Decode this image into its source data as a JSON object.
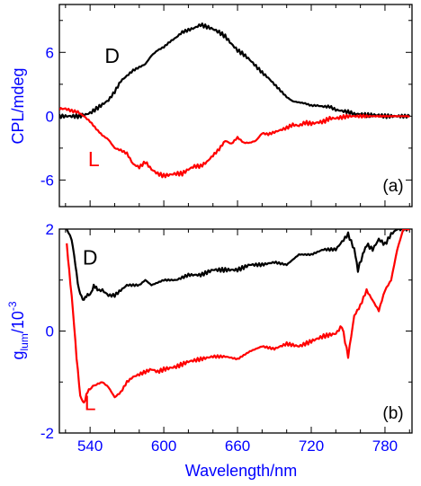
{
  "chart_data": [
    {
      "type": "line",
      "panel_label": "(a)",
      "ylabel": "CPL/mdeg",
      "xlim": [
        515,
        802
      ],
      "ylim": [
        -8.5,
        10.5
      ],
      "yticks": [
        {
          "value": 6,
          "label": "6"
        },
        {
          "value": 0,
          "label": "0"
        },
        {
          "value": -6,
          "label": "-6"
        }
      ],
      "series_colors": {
        "D": "#000000",
        "L": "#ff0000"
      },
      "series_labels": [
        {
          "name": "D",
          "label": "D",
          "x": 558,
          "y": 5.0
        },
        {
          "name": "L",
          "label": "L",
          "x": 543,
          "y": -4.7
        }
      ],
      "series": [
        {
          "name": "D",
          "x": [
            515,
            525,
            530,
            535,
            540,
            545,
            550,
            555,
            560,
            565,
            570,
            575,
            580,
            585,
            590,
            595,
            600,
            605,
            610,
            615,
            620,
            625,
            630,
            635,
            640,
            645,
            650,
            655,
            660,
            665,
            670,
            675,
            680,
            685,
            690,
            695,
            700,
            705,
            710,
            715,
            720,
            725,
            730,
            735,
            740,
            745,
            750,
            755,
            760,
            765,
            770,
            775,
            780,
            785,
            790,
            795,
            800
          ],
          "y": [
            0,
            0,
            0,
            0.1,
            0.3,
            0.7,
            1.1,
            1.5,
            2.3,
            3.3,
            3.8,
            4.3,
            4.6,
            4.9,
            5.7,
            6.2,
            6.5,
            7.0,
            7.4,
            7.9,
            8.1,
            8.3,
            8.6,
            8.4,
            8.2,
            7.9,
            7.5,
            6.8,
            6.2,
            5.8,
            5.3,
            4.7,
            4.1,
            3.6,
            3.0,
            2.4,
            1.8,
            1.4,
            1.3,
            1.2,
            1.0,
            1.0,
            0.9,
            0.9,
            0.6,
            0.5,
            0.4,
            0.2,
            0.2,
            0.1,
            0.1,
            0.1,
            0,
            0,
            0,
            0,
            0
          ]
        },
        {
          "name": "L",
          "x": [
            515,
            520,
            525,
            530,
            535,
            540,
            545,
            550,
            555,
            560,
            565,
            570,
            575,
            580,
            585,
            590,
            595,
            600,
            605,
            610,
            615,
            620,
            625,
            630,
            635,
            640,
            645,
            650,
            655,
            660,
            665,
            670,
            675,
            680,
            685,
            690,
            695,
            700,
            705,
            710,
            715,
            720,
            725,
            730,
            735,
            740,
            745,
            750,
            755,
            760,
            765,
            770,
            775,
            780,
            785,
            790,
            795,
            800
          ],
          "y": [
            0.7,
            0.7,
            0.5,
            0.4,
            0,
            -0.5,
            -1.2,
            -1.8,
            -2.2,
            -3.0,
            -3.2,
            -3.5,
            -4.5,
            -4.8,
            -4.3,
            -5.0,
            -5.4,
            -5.6,
            -5.5,
            -5.4,
            -5.4,
            -5.0,
            -4.7,
            -4.7,
            -4.3,
            -3.7,
            -3.1,
            -2.3,
            -2.6,
            -2.0,
            -2.5,
            -2.5,
            -2.3,
            -1.6,
            -1.7,
            -1.5,
            -1.3,
            -1.1,
            -0.8,
            -0.9,
            -0.6,
            -0.7,
            -0.6,
            -0.5,
            -0.2,
            -0.2,
            -0.1,
            0,
            0,
            0,
            0,
            0,
            0,
            0,
            0,
            0,
            0,
            0
          ]
        }
      ]
    },
    {
      "type": "line",
      "panel_label": "(b)",
      "ylabel_main": "g",
      "ylabel_sub": "lum",
      "ylabel_rest": "/10",
      "ylabel_sup": "-3",
      "xlabel": "Wavelength/nm",
      "xlim": [
        515,
        802
      ],
      "ylim": [
        -2,
        2
      ],
      "xticks": [
        {
          "value": 540,
          "label": "540"
        },
        {
          "value": 600,
          "label": "600"
        },
        {
          "value": 660,
          "label": "660"
        },
        {
          "value": 720,
          "label": "720"
        },
        {
          "value": 780,
          "label": "780"
        }
      ],
      "yticks": [
        {
          "value": 2,
          "label": "2"
        },
        {
          "value": 0,
          "label": "0"
        },
        {
          "value": -2,
          "label": "-2"
        }
      ],
      "series_colors": {
        "D": "#000000",
        "L": "#ff0000"
      },
      "series_labels": [
        {
          "name": "D",
          "label": "D",
          "x": 540,
          "y": 1.3
        },
        {
          "name": "L",
          "label": "L",
          "x": 540,
          "y": -1.55
        }
      ],
      "series": [
        {
          "name": "D",
          "x": [
            521,
            525,
            528,
            531,
            534,
            537,
            540,
            543,
            546,
            550,
            555,
            560,
            565,
            570,
            575,
            580,
            585,
            590,
            600,
            610,
            620,
            630,
            640,
            650,
            660,
            670,
            680,
            690,
            700,
            710,
            720,
            730,
            740,
            745,
            750,
            755,
            758,
            762,
            765,
            770,
            775,
            780,
            785,
            790,
            795,
            800
          ],
          "y": [
            2.0,
            1.8,
            1.3,
            0.8,
            0.6,
            0.7,
            0.7,
            0.9,
            0.8,
            0.8,
            0.7,
            0.7,
            0.8,
            0.9,
            0.9,
            0.9,
            1.0,
            0.9,
            1.0,
            1.0,
            1.1,
            1.1,
            1.2,
            1.2,
            1.2,
            1.3,
            1.3,
            1.35,
            1.3,
            1.5,
            1.5,
            1.6,
            1.6,
            1.75,
            1.9,
            1.6,
            1.2,
            1.5,
            1.7,
            1.6,
            1.8,
            1.7,
            1.9,
            2.0,
            2.0,
            2.0
          ]
        },
        {
          "name": "L",
          "x": [
            521,
            523,
            526,
            529,
            532,
            535,
            538,
            541,
            545,
            550,
            555,
            560,
            565,
            570,
            575,
            580,
            585,
            590,
            595,
            600,
            610,
            620,
            630,
            640,
            650,
            660,
            670,
            680,
            690,
            700,
            710,
            720,
            730,
            740,
            745,
            750,
            755,
            760,
            765,
            770,
            775,
            780,
            785,
            790,
            795,
            800
          ],
          "y": [
            1.7,
            1.2,
            0.4,
            -0.5,
            -1.3,
            -1.4,
            -1.2,
            -1.1,
            -1.05,
            -1.0,
            -1.1,
            -1.3,
            -1.2,
            -1.0,
            -0.9,
            -0.85,
            -0.8,
            -0.75,
            -0.8,
            -0.75,
            -0.7,
            -0.6,
            -0.55,
            -0.5,
            -0.5,
            -0.55,
            -0.4,
            -0.3,
            -0.35,
            -0.25,
            -0.3,
            -0.2,
            -0.1,
            -0.05,
            0.1,
            -0.5,
            0.3,
            0.5,
            0.8,
            0.6,
            0.4,
            0.8,
            1.0,
            1.6,
            2.0,
            2.0
          ]
        }
      ]
    }
  ]
}
